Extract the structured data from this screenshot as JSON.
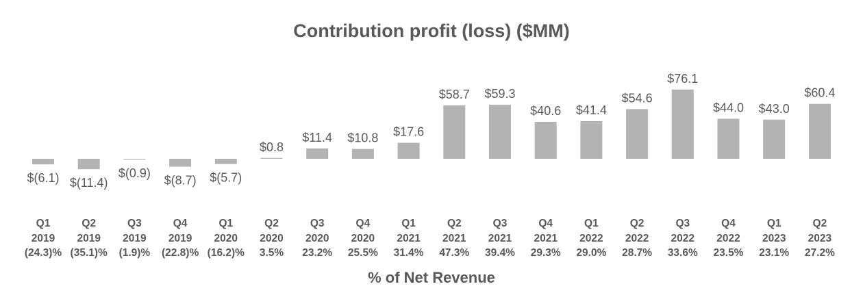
{
  "chart_data": {
    "type": "bar",
    "title": "Contribution profit (loss) ($MM)",
    "xlabel": "% of Net Revenue",
    "ylabel": "",
    "grid": false,
    "categories": [
      {
        "quarter": "Q1",
        "year": "2019",
        "pct": "(24.3)%"
      },
      {
        "quarter": "Q2",
        "year": "2019",
        "pct": "(35.1)%"
      },
      {
        "quarter": "Q3",
        "year": "2019",
        "pct": "(1.9)%"
      },
      {
        "quarter": "Q4",
        "year": "2019",
        "pct": "(22.8)%"
      },
      {
        "quarter": "Q1",
        "year": "2020",
        "pct": "(16.2)%"
      },
      {
        "quarter": "Q2",
        "year": "2020",
        "pct": "3.5%"
      },
      {
        "quarter": "Q3",
        "year": "2020",
        "pct": "23.2%"
      },
      {
        "quarter": "Q4",
        "year": "2020",
        "pct": "25.5%"
      },
      {
        "quarter": "Q1",
        "year": "2021",
        "pct": "31.4%"
      },
      {
        "quarter": "Q2",
        "year": "2021",
        "pct": "47.3%"
      },
      {
        "quarter": "Q3",
        "year": "2021",
        "pct": "39.4%"
      },
      {
        "quarter": "Q4",
        "year": "2021",
        "pct": "29.3%"
      },
      {
        "quarter": "Q1",
        "year": "2022",
        "pct": "29.0%"
      },
      {
        "quarter": "Q2",
        "year": "2022",
        "pct": "28.7%"
      },
      {
        "quarter": "Q3",
        "year": "2022",
        "pct": "33.6%"
      },
      {
        "quarter": "Q4",
        "year": "2022",
        "pct": "23.5%"
      },
      {
        "quarter": "Q1",
        "year": "2023",
        "pct": "23.1%"
      },
      {
        "quarter": "Q2",
        "year": "2023",
        "pct": "27.2%"
      }
    ],
    "values": [
      -6.1,
      -11.4,
      -0.9,
      -8.7,
      -5.7,
      0.8,
      11.4,
      10.8,
      17.6,
      58.7,
      59.3,
      40.6,
      41.4,
      54.6,
      76.1,
      44.0,
      43.0,
      60.4
    ],
    "data_labels": [
      "$(6.1)",
      "$(11.4)",
      "$(0.9)",
      "$(8.7)",
      "$(5.7)",
      "$0.8",
      "$11.4",
      "$10.8",
      "$17.6",
      "$58.7",
      "$59.3",
      "$40.6",
      "$41.4",
      "$54.6",
      "$76.1",
      "$44.0",
      "$43.0",
      "$60.4"
    ],
    "ylim": [
      -15,
      80
    ],
    "colors": {
      "bar": "#b3b3b3",
      "text": "#595959"
    }
  }
}
